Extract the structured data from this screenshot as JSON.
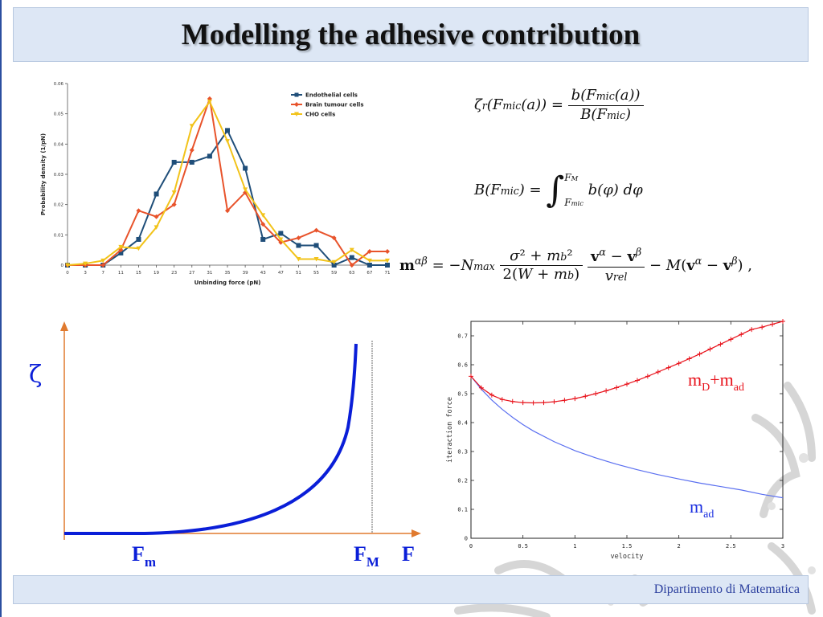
{
  "slide": {
    "title": "Modelling the adhesive contribution",
    "footer": "Dipartimento di Matematica"
  },
  "formulas": {
    "zeta_def": "ζ_r(F_mic(a)) = b(F_mic(a)) / B(F_mic)",
    "b_def": "B(F_mic) = ∫_{F_mic}^{F_M} b(φ) dφ",
    "m_def": "m^{αβ} = −N_max σ²+m_b² / 2(W+m_b) · (v^α − v^β)/v_rel − M(v^α − v^β),"
  },
  "sketch": {
    "y_symbol": "ζ",
    "x_symbol": "F",
    "fm_label": "F",
    "fm_sub": "m",
    "fM_label": "F",
    "fM_sub": "M"
  },
  "colors": {
    "title_band": "#dde7f5",
    "footer_text": "#2b3f9e",
    "endothelial": "#1f4e79",
    "brain": "#e8532b",
    "cho": "#f2c31a",
    "sketch_curve": "#0a1ed8",
    "axis_orange": "#e07a2f",
    "red_series": "#e8121b",
    "blue_series": "#5a6ff0"
  },
  "chart_data": [
    {
      "type": "line",
      "xlabel": "Unbinding force (pN)",
      "ylabel": "Probability density (1/pN)",
      "x": [
        0,
        3,
        7,
        11,
        15,
        19,
        23,
        27,
        31,
        35,
        39,
        43,
        47,
        51,
        55,
        59,
        63,
        67,
        71
      ],
      "x_ticks": [
        "0",
        "3",
        "7",
        "11",
        "15",
        "19",
        "23",
        "27",
        "31",
        "35",
        "39",
        "43",
        "47",
        "51",
        "55",
        "59",
        "63",
        "67",
        "71"
      ],
      "y_ticks": [
        "0",
        "0.01",
        "0.02",
        "0.03",
        "0.04",
        "0.05",
        "0.06"
      ],
      "ylim": [
        0,
        0.06
      ],
      "legend_position": "top-right",
      "series": [
        {
          "name": "Endothelial cells",
          "marker": "square",
          "values": [
            0,
            0,
            0,
            0.004,
            0.0085,
            0.0235,
            0.034,
            0.034,
            0.036,
            0.0445,
            0.032,
            0.0085,
            0.0105,
            0.0065,
            0.0065,
            0,
            0.0025,
            0,
            0
          ]
        },
        {
          "name": "Brain tumour cells",
          "marker": "diamond",
          "values": [
            0,
            0,
            0,
            0.005,
            0.018,
            0.016,
            0.02,
            0.038,
            0.055,
            0.018,
            0.024,
            0.0135,
            0.0075,
            0.009,
            0.0115,
            0.009,
            0,
            0.0045,
            0.0045
          ]
        },
        {
          "name": "CHO cells",
          "marker": "triangle-down",
          "values": [
            0,
            0.0005,
            0.0015,
            0.006,
            0.0055,
            0.0125,
            0.024,
            0.046,
            0.054,
            0.041,
            0.025,
            0.0165,
            0.0085,
            0.002,
            0.002,
            0.001,
            0.005,
            0.0015,
            0.0015
          ]
        }
      ]
    },
    {
      "type": "line",
      "xlabel": "velocity",
      "ylabel": "iteraction force",
      "xlim": [
        0,
        3
      ],
      "ylim": [
        0,
        0.75
      ],
      "x_ticks": [
        "0",
        "0.5",
        "1",
        "1.5",
        "2",
        "2.5",
        "3"
      ],
      "y_ticks": [
        "0",
        "0.1",
        "0.2",
        "0.3",
        "0.4",
        "0.5",
        "0.6",
        "0.7"
      ],
      "annotations": [
        {
          "series": "red",
          "text": "m",
          "sub1": "D",
          "mid": "+m",
          "sub2": "ad"
        },
        {
          "series": "blue",
          "text": "m",
          "sub1": "ad"
        }
      ],
      "series": [
        {
          "key": "red",
          "marker": "plus",
          "x": [
            0,
            0.1,
            0.2,
            0.3,
            0.4,
            0.5,
            0.6,
            0.7,
            0.8,
            0.9,
            1.0,
            1.1,
            1.2,
            1.3,
            1.4,
            1.5,
            1.6,
            1.7,
            1.8,
            1.9,
            2.0,
            2.1,
            2.2,
            2.3,
            2.4,
            2.5,
            2.6,
            2.7,
            2.8,
            2.9,
            3.0
          ],
          "values": [
            0.56,
            0.52,
            0.495,
            0.48,
            0.473,
            0.469,
            0.468,
            0.469,
            0.472,
            0.477,
            0.483,
            0.491,
            0.5,
            0.51,
            0.521,
            0.533,
            0.546,
            0.56,
            0.575,
            0.59,
            0.605,
            0.621,
            0.637,
            0.654,
            0.671,
            0.688,
            0.705,
            0.722,
            0.73,
            0.74,
            0.75
          ]
        },
        {
          "key": "blue",
          "marker": "none",
          "x": [
            0,
            0.1,
            0.2,
            0.3,
            0.4,
            0.5,
            0.6,
            0.8,
            1.0,
            1.2,
            1.4,
            1.6,
            1.8,
            2.0,
            2.2,
            2.4,
            2.6,
            2.8,
            3.0
          ],
          "values": [
            0.56,
            0.515,
            0.478,
            0.446,
            0.418,
            0.393,
            0.371,
            0.334,
            0.303,
            0.278,
            0.256,
            0.237,
            0.22,
            0.205,
            0.191,
            0.179,
            0.167,
            0.152,
            0.14
          ]
        }
      ]
    }
  ]
}
